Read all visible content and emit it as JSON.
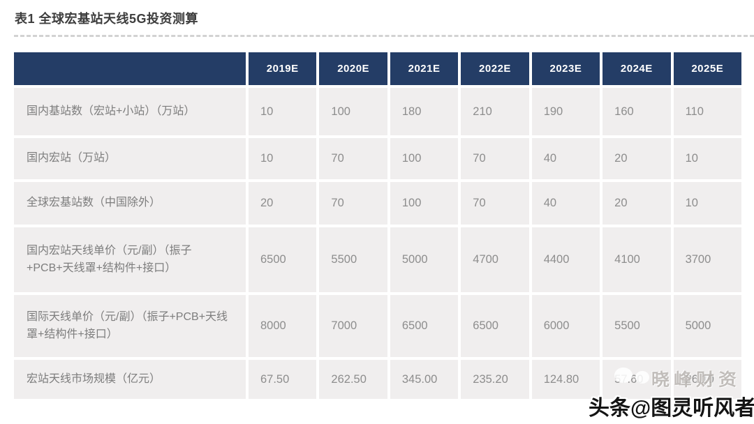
{
  "page": {
    "title": "表1 全球宏基站天线5G投资测算"
  },
  "table": {
    "header_years": [
      "2019E",
      "2020E",
      "2021E",
      "2022E",
      "2023E",
      "2024E",
      "2025E"
    ],
    "rows": [
      {
        "label": "国内基站数（宏站+小站）（万站）",
        "values": [
          "10",
          "100",
          "180",
          "210",
          "190",
          "160",
          "110"
        ]
      },
      {
        "label": "国内宏站（万站）",
        "values": [
          "10",
          "70",
          "100",
          "70",
          "40",
          "20",
          "10"
        ]
      },
      {
        "label": "全球宏基站数（中国除外）",
        "values": [
          "20",
          "70",
          "100",
          "70",
          "40",
          "20",
          "10"
        ]
      },
      {
        "label": "国内宏站天线单价（元/副）（振子+PCB+天线罩+结构件+接口）",
        "values": [
          "6500",
          "5500",
          "5000",
          "4700",
          "4400",
          "4100",
          "3700"
        ]
      },
      {
        "label": "国际天线单价（元/副）（振子+PCB+天线罩+结构件+接口）",
        "values": [
          "8000",
          "7000",
          "6500",
          "6500",
          "6000",
          "5500",
          "5000"
        ]
      },
      {
        "label": "宏站天线市场规模（亿元）",
        "values": [
          "67.50",
          "262.50",
          "345.00",
          "235.20",
          "124.80",
          "57.60",
          "26.10"
        ]
      }
    ]
  },
  "watermarks": {
    "overlay": "晓峰财资",
    "credit": "头条@图灵听风者"
  },
  "colors": {
    "header_bg": "#243d66",
    "cell_bg": "#f0eeee",
    "cell_text": "#8d8d8d",
    "label_text": "#7d7d7d",
    "title_text": "#3d3d3d"
  },
  "chart_data": {
    "type": "table",
    "title": "表1 全球宏基站天线5G投资测算",
    "categories": [
      "2019E",
      "2020E",
      "2021E",
      "2022E",
      "2023E",
      "2024E",
      "2025E"
    ],
    "series": [
      {
        "name": "国内基站数（宏站+小站）（万站）",
        "values": [
          10,
          100,
          180,
          210,
          190,
          160,
          110
        ]
      },
      {
        "name": "国内宏站（万站）",
        "values": [
          10,
          70,
          100,
          70,
          40,
          20,
          10
        ]
      },
      {
        "name": "全球宏基站数（中国除外）",
        "values": [
          20,
          70,
          100,
          70,
          40,
          20,
          10
        ]
      },
      {
        "name": "国内宏站天线单价（元/副）（振子+PCB+天线罩+结构件+接口）",
        "values": [
          6500,
          5500,
          5000,
          4700,
          4400,
          4100,
          3700
        ]
      },
      {
        "name": "国际天线单价（元/副）（振子+PCB+天线罩+结构件+接口）",
        "values": [
          8000,
          7000,
          6500,
          6500,
          6000,
          5500,
          5000
        ]
      },
      {
        "name": "宏站天线市场规模（亿元）",
        "values": [
          67.5,
          262.5,
          345.0,
          235.2,
          124.8,
          57.6,
          26.1
        ]
      }
    ],
    "legend_position": "none",
    "grid": false
  }
}
